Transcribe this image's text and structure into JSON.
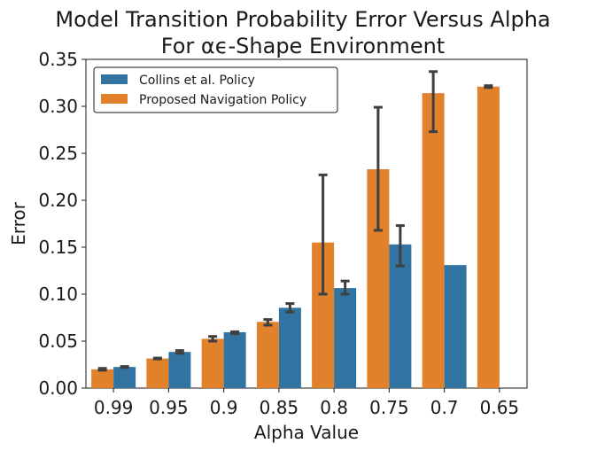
{
  "chart_data": {
    "type": "bar",
    "title": "Model Transition Probability Error Versus Alpha\nFor αϵ-Shape Environment",
    "xlabel": "Alpha Value",
    "ylabel": "Error",
    "categories": [
      "0.99",
      "0.95",
      "0.9",
      "0.85",
      "0.8",
      "0.75",
      "0.7",
      "0.65"
    ],
    "ylim": [
      0,
      0.35
    ],
    "yticks": [
      0.0,
      0.05,
      0.1,
      0.15,
      0.2,
      0.25,
      0.3,
      0.35
    ],
    "ytick_labels": [
      "0.00",
      "0.05",
      "0.10",
      "0.15",
      "0.20",
      "0.25",
      "0.30",
      "0.35"
    ],
    "legend_position": "top-left",
    "grid": false,
    "series": [
      {
        "name": "Collins et al. Policy",
        "color": "#3274a1",
        "values": [
          0.0225,
          0.0385,
          0.0595,
          0.0855,
          0.1065,
          0.153,
          0.131,
          null
        ],
        "err_low": [
          0.022,
          0.037,
          0.058,
          0.081,
          0.1,
          0.13,
          null,
          null
        ],
        "err_high": [
          0.023,
          0.04,
          0.06,
          0.09,
          0.114,
          0.173,
          null,
          null
        ]
      },
      {
        "name": "Proposed Navigation Policy",
        "color": "#e1812c",
        "values": [
          0.02,
          0.0315,
          0.0525,
          0.0705,
          0.155,
          0.233,
          0.314,
          0.321
        ],
        "err_low": [
          0.019,
          0.031,
          0.05,
          0.067,
          0.1,
          0.168,
          0.273,
          0.32
        ],
        "err_high": [
          0.021,
          0.032,
          0.055,
          0.073,
          0.227,
          0.299,
          0.337,
          0.322
        ]
      }
    ]
  }
}
